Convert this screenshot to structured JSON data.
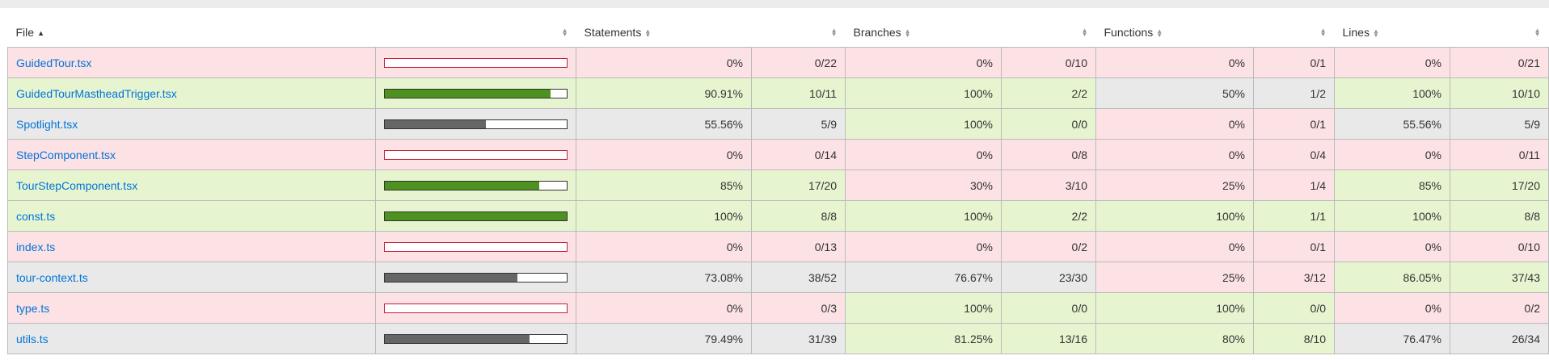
{
  "header": {
    "file": "File",
    "statements": "Statements",
    "branches": "Branches",
    "functions": "Functions",
    "lines": "Lines"
  },
  "rows": [
    {
      "file": "GuidedTour.tsx",
      "pct": 0,
      "level": "low",
      "st_pct": "0%",
      "st_frac": "0/22",
      "st_lvl": "low",
      "br_pct": "0%",
      "br_frac": "0/10",
      "br_lvl": "low",
      "fn_pct": "0%",
      "fn_frac": "0/1",
      "fn_lvl": "low",
      "ln_pct": "0%",
      "ln_frac": "0/21",
      "ln_lvl": "low"
    },
    {
      "file": "GuidedTourMastheadTrigger.tsx",
      "pct": 90.91,
      "level": "high",
      "st_pct": "90.91%",
      "st_frac": "10/11",
      "st_lvl": "high",
      "br_pct": "100%",
      "br_frac": "2/2",
      "br_lvl": "high",
      "fn_pct": "50%",
      "fn_frac": "1/2",
      "fn_lvl": "medium",
      "ln_pct": "100%",
      "ln_frac": "10/10",
      "ln_lvl": "high"
    },
    {
      "file": "Spotlight.tsx",
      "pct": 55.56,
      "level": "medium",
      "st_pct": "55.56%",
      "st_frac": "5/9",
      "st_lvl": "medium",
      "br_pct": "100%",
      "br_frac": "0/0",
      "br_lvl": "high",
      "fn_pct": "0%",
      "fn_frac": "0/1",
      "fn_lvl": "low",
      "ln_pct": "55.56%",
      "ln_frac": "5/9",
      "ln_lvl": "medium"
    },
    {
      "file": "StepComponent.tsx",
      "pct": 0,
      "level": "low",
      "st_pct": "0%",
      "st_frac": "0/14",
      "st_lvl": "low",
      "br_pct": "0%",
      "br_frac": "0/8",
      "br_lvl": "low",
      "fn_pct": "0%",
      "fn_frac": "0/4",
      "fn_lvl": "low",
      "ln_pct": "0%",
      "ln_frac": "0/11",
      "ln_lvl": "low"
    },
    {
      "file": "TourStepComponent.tsx",
      "pct": 85,
      "level": "high",
      "st_pct": "85%",
      "st_frac": "17/20",
      "st_lvl": "high",
      "br_pct": "30%",
      "br_frac": "3/10",
      "br_lvl": "low",
      "fn_pct": "25%",
      "fn_frac": "1/4",
      "fn_lvl": "low",
      "ln_pct": "85%",
      "ln_frac": "17/20",
      "ln_lvl": "high"
    },
    {
      "file": "const.ts",
      "pct": 100,
      "level": "high",
      "st_pct": "100%",
      "st_frac": "8/8",
      "st_lvl": "high",
      "br_pct": "100%",
      "br_frac": "2/2",
      "br_lvl": "high",
      "fn_pct": "100%",
      "fn_frac": "1/1",
      "fn_lvl": "high",
      "ln_pct": "100%",
      "ln_frac": "8/8",
      "ln_lvl": "high"
    },
    {
      "file": "index.ts",
      "pct": 0,
      "level": "low",
      "st_pct": "0%",
      "st_frac": "0/13",
      "st_lvl": "low",
      "br_pct": "0%",
      "br_frac": "0/2",
      "br_lvl": "low",
      "fn_pct": "0%",
      "fn_frac": "0/1",
      "fn_lvl": "low",
      "ln_pct": "0%",
      "ln_frac": "0/10",
      "ln_lvl": "low"
    },
    {
      "file": "tour-context.ts",
      "pct": 73.08,
      "level": "medium",
      "st_pct": "73.08%",
      "st_frac": "38/52",
      "st_lvl": "medium",
      "br_pct": "76.67%",
      "br_frac": "23/30",
      "br_lvl": "medium",
      "fn_pct": "25%",
      "fn_frac": "3/12",
      "fn_lvl": "low",
      "ln_pct": "86.05%",
      "ln_frac": "37/43",
      "ln_lvl": "high"
    },
    {
      "file": "type.ts",
      "pct": 0,
      "level": "low",
      "st_pct": "0%",
      "st_frac": "0/3",
      "st_lvl": "low",
      "br_pct": "100%",
      "br_frac": "0/0",
      "br_lvl": "high",
      "fn_pct": "100%",
      "fn_frac": "0/0",
      "fn_lvl": "high",
      "ln_pct": "0%",
      "ln_frac": "0/2",
      "ln_lvl": "low"
    },
    {
      "file": "utils.ts",
      "pct": 79.49,
      "level": "medium",
      "st_pct": "79.49%",
      "st_frac": "31/39",
      "st_lvl": "medium",
      "br_pct": "81.25%",
      "br_frac": "13/16",
      "br_lvl": "high",
      "fn_pct": "80%",
      "fn_frac": "8/10",
      "fn_lvl": "high",
      "ln_pct": "76.47%",
      "ln_frac": "26/34",
      "ln_lvl": "medium"
    }
  ]
}
